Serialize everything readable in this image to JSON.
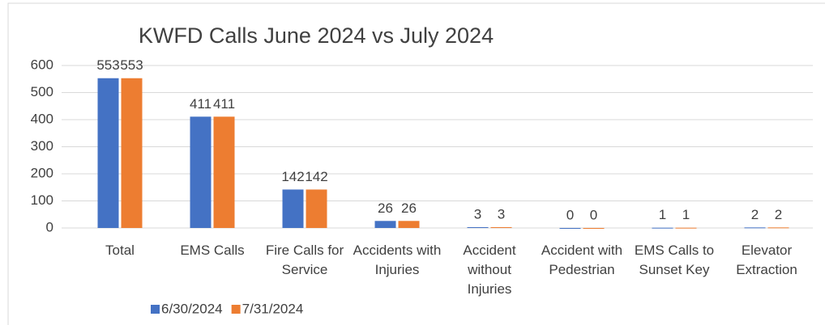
{
  "chart_data": {
    "type": "bar",
    "title": "KWFD Calls June 2024 vs July 2024",
    "categories": [
      "Total",
      "EMS Calls",
      "Fire Calls for Service",
      "Accidents with Injuries",
      "Accident without Injuries",
      "Accident with Pedestrian",
      "EMS Calls to Sunset Key",
      "Elevator Extraction"
    ],
    "series": [
      {
        "name": "6/30/2024",
        "color": "#4472c4",
        "values": [
          553,
          411,
          142,
          26,
          3,
          0,
          1,
          2
        ]
      },
      {
        "name": "7/31/2024",
        "color": "#ed7d31",
        "values": [
          553,
          411,
          142,
          26,
          3,
          0,
          1,
          2
        ]
      }
    ],
    "ylim": [
      0,
      600
    ],
    "yticks": [
      0,
      100,
      200,
      300,
      400,
      500,
      600
    ],
    "grid": true,
    "legend": "bottom"
  }
}
